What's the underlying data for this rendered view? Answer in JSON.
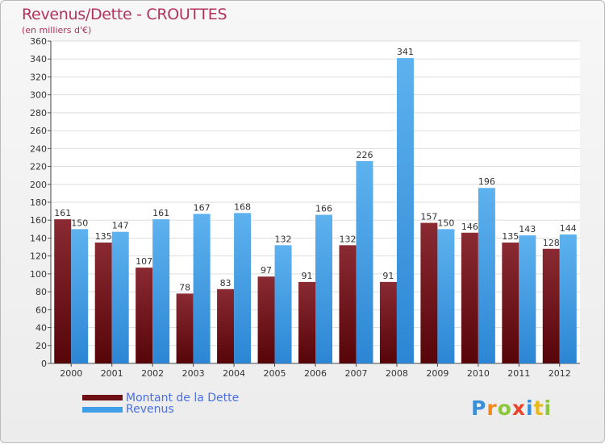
{
  "title": "Revenus/Dette - CROUTTES",
  "unit": "(en milliers d'€)",
  "logo": "Proxiti",
  "colors": {
    "dette": "#6e0f16",
    "revenus": "#3f9ee6",
    "title": "#b1325e",
    "legend_text": "#4a6fe0"
  },
  "chart_data": {
    "type": "bar",
    "categories": [
      "2000",
      "2001",
      "2002",
      "2003",
      "2004",
      "2005",
      "2006",
      "2007",
      "2008",
      "2009",
      "2010",
      "2011",
      "2012"
    ],
    "series": [
      {
        "name": "Montant de la Dette",
        "values": [
          161,
          135,
          107,
          78,
          83,
          97,
          91,
          132,
          91,
          157,
          146,
          135,
          128
        ]
      },
      {
        "name": "Revenus",
        "values": [
          150,
          147,
          161,
          167,
          168,
          132,
          166,
          226,
          341,
          150,
          196,
          143,
          144
        ]
      }
    ],
    "ylim": [
      0,
      360
    ],
    "yticks": [
      0,
      20,
      40,
      60,
      80,
      100,
      120,
      140,
      160,
      180,
      200,
      220,
      240,
      260,
      280,
      300,
      320,
      340,
      360
    ],
    "grid": true,
    "legend": "bottom-left"
  }
}
